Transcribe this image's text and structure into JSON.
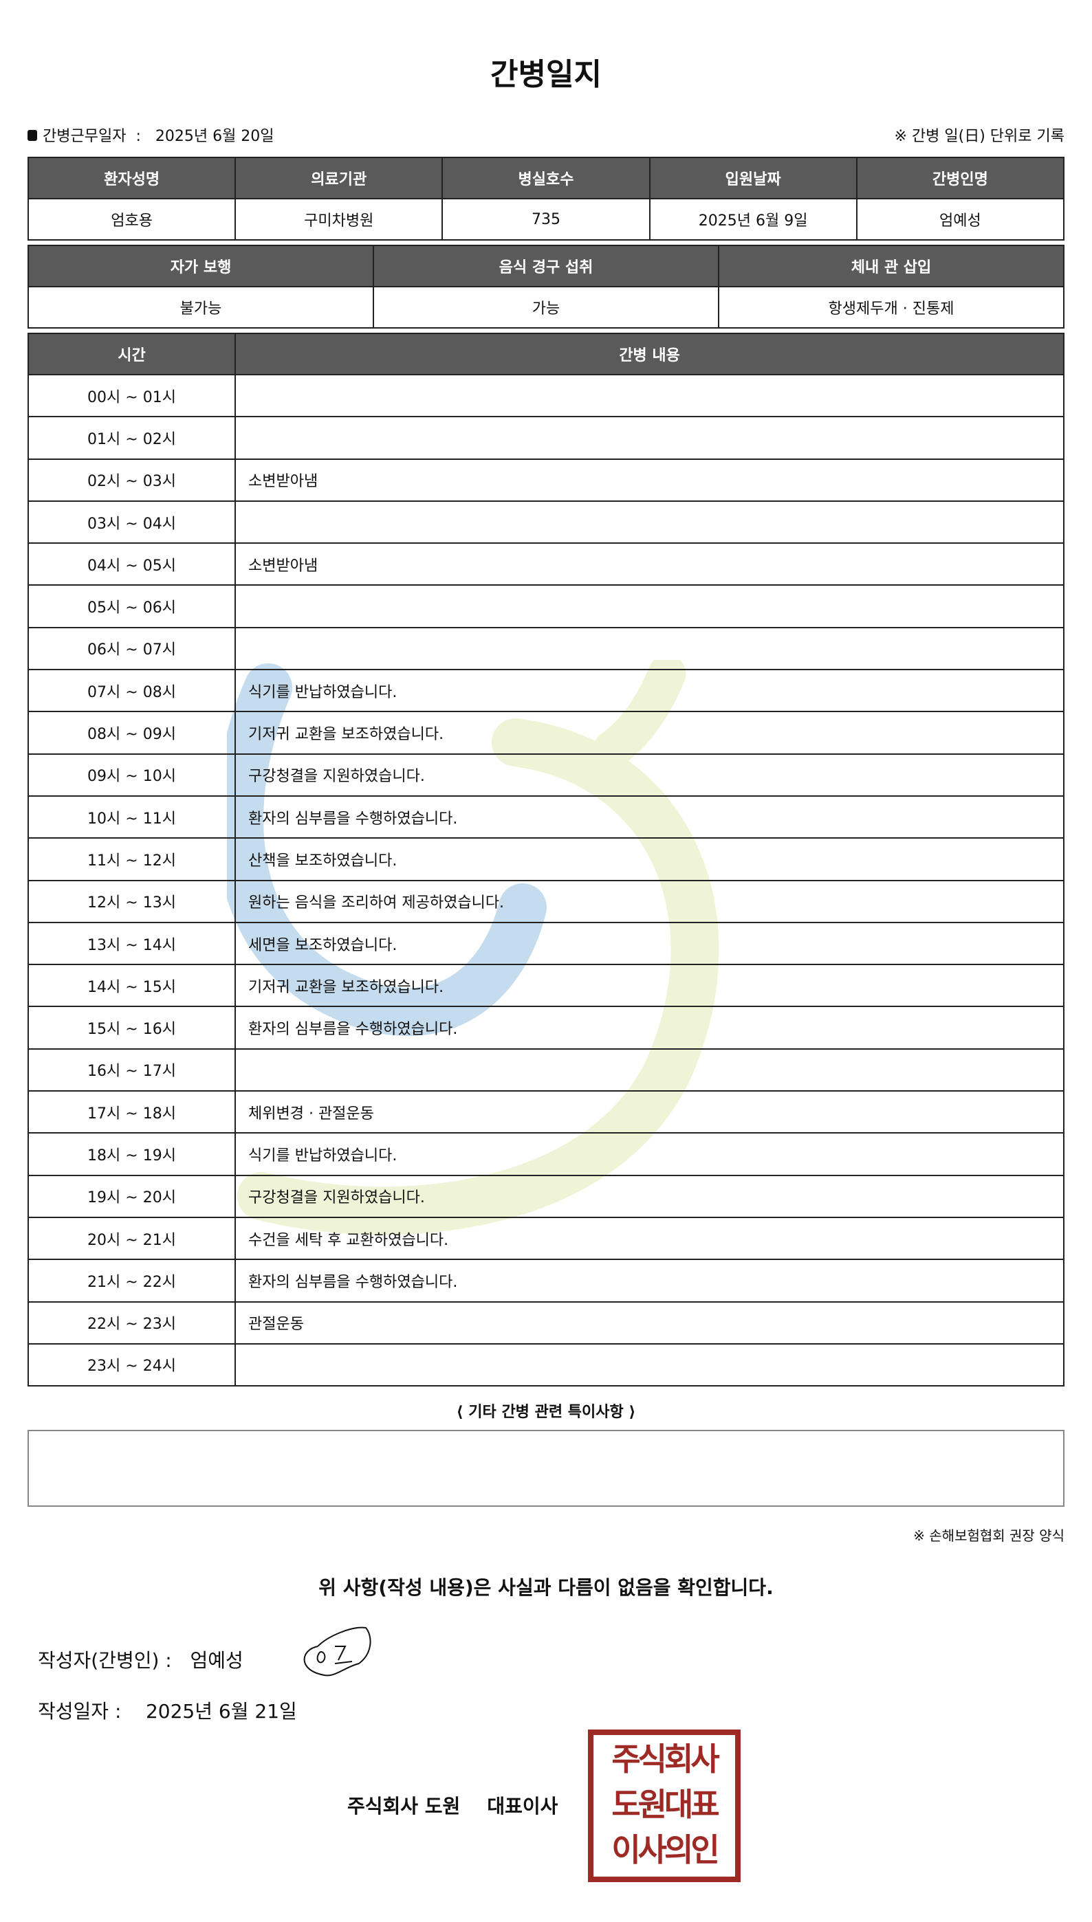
{
  "title": "간병일지",
  "work_date_label": "간병근무일자",
  "work_date_sep": ":",
  "work_date": "2025년 6월 20일",
  "record_note": "※ 간병 일(日) 단위로 기록",
  "info1": {
    "headers": [
      "환자성명",
      "의료기관",
      "병실호수",
      "입원날짜",
      "간병인명"
    ],
    "values": [
      "엄호용",
      "구미차병원",
      "735",
      "2025년 6월 9일",
      "엄예성"
    ]
  },
  "info2": {
    "headers": [
      "자가 보행",
      "음식 경구 섭취",
      "체내 관 삽입"
    ],
    "values": [
      "불가능",
      "가능",
      "항생제두개 · 진통제"
    ]
  },
  "log": {
    "headers": [
      "시간",
      "간병 내용"
    ],
    "rows": [
      [
        "00시 ~ 01시",
        ""
      ],
      [
        "01시 ~ 02시",
        ""
      ],
      [
        "02시 ~ 03시",
        "소변받아냄"
      ],
      [
        "03시 ~ 04시",
        ""
      ],
      [
        "04시 ~ 05시",
        "소변받아냄"
      ],
      [
        "05시 ~ 06시",
        ""
      ],
      [
        "06시 ~ 07시",
        ""
      ],
      [
        "07시 ~ 08시",
        "식기를 반납하였습니다."
      ],
      [
        "08시 ~ 09시",
        "기저귀 교환을 보조하였습니다."
      ],
      [
        "09시 ~ 10시",
        "구강청결을 지원하였습니다."
      ],
      [
        "10시 ~ 11시",
        "환자의 심부름을 수행하였습니다."
      ],
      [
        "11시 ~ 12시",
        "산책을 보조하였습니다."
      ],
      [
        "12시 ~ 13시",
        "원하는 음식을 조리하여 제공하였습니다."
      ],
      [
        "13시 ~ 14시",
        "세면을 보조하였습니다."
      ],
      [
        "14시 ~ 15시",
        "기저귀 교환을 보조하였습니다."
      ],
      [
        "15시 ~ 16시",
        "환자의 심부름을 수행하였습니다."
      ],
      [
        "16시 ~ 17시",
        ""
      ],
      [
        "17시 ~ 18시",
        "체위변경 · 관절운동"
      ],
      [
        "18시 ~ 19시",
        "식기를 반납하였습니다."
      ],
      [
        "19시 ~ 20시",
        "구강청결을 지원하였습니다."
      ],
      [
        "20시 ~ 21시",
        "수건을 세탁 후 교환하였습니다."
      ],
      [
        "21시 ~ 22시",
        "환자의 심부름을 수행하였습니다."
      ],
      [
        "22시 ~ 23시",
        "관절운동"
      ],
      [
        "23시 ~ 24시",
        ""
      ]
    ]
  },
  "notes_title": "⟨ 기타 간병 관련 특이사항 ⟩",
  "notes": "",
  "form_note": "※ 손해보험협회 권장 양식",
  "confirm": "위 사항(작성 내용)은 사실과 다름이 없음을 확인합니다.",
  "writer_label": "작성자(간병인) :",
  "writer": "엄예성",
  "signature": "엄",
  "written_date_label": "작성일자 :",
  "written_date": "2025년 6월 21일",
  "company": "주식회사 도원",
  "ceo": "대표이사",
  "stamp_text": [
    "주식회사",
    "도원대표",
    "이사의인"
  ],
  "colors": {
    "header_bg": "#5a5a5a",
    "stamp": "#9e2a25",
    "watermark_blue": "#bcd7ec",
    "watermark_green": "#eef3cf"
  }
}
